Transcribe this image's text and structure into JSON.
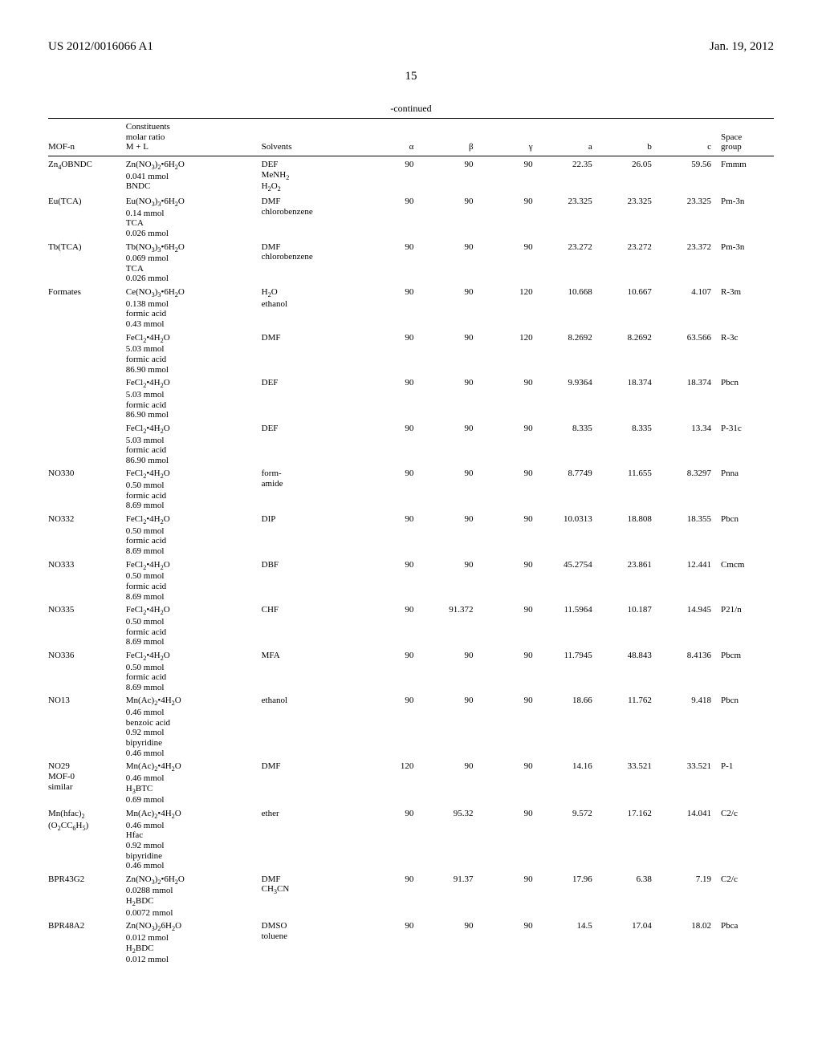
{
  "header": {
    "left": "US 2012/0016066 A1",
    "right": "Jan. 19, 2012",
    "page_num": "15",
    "continued": "-continued"
  },
  "table": {
    "columns": {
      "mof": "MOF-n",
      "const_line1": "Constituents",
      "const_line2": "molar ratio",
      "const_line3": "M + L",
      "solvents": "Solvents",
      "alpha": "α",
      "beta": "β",
      "gamma": "γ",
      "a": "a",
      "b": "b",
      "c": "c",
      "space_line1": "Space",
      "space_line2": "group"
    },
    "rows": [
      {
        "mof": "Zn<sub>4</sub>OBNDC",
        "const": "Zn(NO<sub>3</sub>)<sub>2</sub>•6H<sub>2</sub>O<br>0.041 mmol<br>BNDC",
        "solv": "DEF<br>MeNH<sub>2</sub><br>H<sub>2</sub>O<sub>2</sub>",
        "alpha": "90",
        "beta": "90",
        "gamma": "90",
        "a": "22.35",
        "b": "26.05",
        "c": "59.56",
        "sg": "Fmmm"
      },
      {
        "mof": "Eu(TCA)",
        "const": "Eu(NO<sub>3</sub>)<sub>3</sub>•6H<sub>2</sub>O<br>0.14 mmol<br>TCA<br>0.026 mmol",
        "solv": "DMF<br>chlorobenzene",
        "alpha": "90",
        "beta": "90",
        "gamma": "90",
        "a": "23.325",
        "b": "23.325",
        "c": "23.325",
        "sg": "Pm-3n"
      },
      {
        "mof": "Tb(TCA)",
        "const": "Tb(NO<sub>3</sub>)<sub>3</sub>•6H<sub>2</sub>O<br>0.069 mmol<br>TCA<br>0.026 mmol",
        "solv": "DMF<br>chlorobenzene",
        "alpha": "90",
        "beta": "90",
        "gamma": "90",
        "a": "23.272",
        "b": "23.272",
        "c": "23.372",
        "sg": "Pm-3n"
      },
      {
        "mof": "Formates",
        "const": "Ce(NO<sub>3</sub>)<sub>3</sub>•6H<sub>2</sub>O<br>0.138 mmol<br>formic acid<br>0.43 mmol",
        "solv": "H<sub>2</sub>O<br>ethanol",
        "alpha": "90",
        "beta": "90",
        "gamma": "120",
        "a": "10.668",
        "b": "10.667",
        "c": "4.107",
        "sg": "R-3m"
      },
      {
        "mof": "",
        "const": "FeCl<sub>2</sub>•4H<sub>2</sub>O<br>5.03 mmol<br>formic acid<br>86.90 mmol",
        "solv": "DMF",
        "alpha": "90",
        "beta": "90",
        "gamma": "120",
        "a": "8.2692",
        "b": "8.2692",
        "c": "63.566",
        "sg": "R-3c"
      },
      {
        "mof": "",
        "const": "FeCl<sub>2</sub>•4H<sub>2</sub>O<br>5.03 mmol<br>formic acid<br>86.90 mmol",
        "solv": "DEF",
        "alpha": "90",
        "beta": "90",
        "gamma": "90",
        "a": "9.9364",
        "b": "18.374",
        "c": "18.374",
        "sg": "Pbcn"
      },
      {
        "mof": "",
        "const": "FeCl<sub>2</sub>•4H<sub>2</sub>O<br>5.03 mmol<br>formic acid<br>86.90 mmol",
        "solv": "DEF",
        "alpha": "90",
        "beta": "90",
        "gamma": "90",
        "a": "8.335",
        "b": "8.335",
        "c": "13.34",
        "sg": "P-31c"
      },
      {
        "mof": "NO330",
        "const": "FeCl<sub>2</sub>•4H<sub>2</sub>O<br>0.50 mmol<br>formic acid<br>8.69 mmol",
        "solv": "form-<br>amide",
        "alpha": "90",
        "beta": "90",
        "gamma": "90",
        "a": "8.7749",
        "b": "11.655",
        "c": "8.3297",
        "sg": "Pnna"
      },
      {
        "mof": "NO332",
        "const": "FeCl<sub>2</sub>•4H<sub>2</sub>O<br>0.50 mmol<br>formic acid<br>8.69 mmol",
        "solv": "DIP",
        "alpha": "90",
        "beta": "90",
        "gamma": "90",
        "a": "10.0313",
        "b": "18.808",
        "c": "18.355",
        "sg": "Pbcn"
      },
      {
        "mof": "NO333",
        "const": "FeCl<sub>2</sub>•4H<sub>2</sub>O<br>0.50 mmol<br>formic acid<br>8.69 mmol",
        "solv": "DBF",
        "alpha": "90",
        "beta": "90",
        "gamma": "90",
        "a": "45.2754",
        "b": "23.861",
        "c": "12.441",
        "sg": "Cmcm"
      },
      {
        "mof": "NO335",
        "const": "FeCl<sub>2</sub>•4H<sub>2</sub>O<br>0.50 mmol<br>formic acid<br>8.69 mmol",
        "solv": "CHF",
        "alpha": "90",
        "beta": "91.372",
        "gamma": "90",
        "a": "11.5964",
        "b": "10.187",
        "c": "14.945",
        "sg": "P21/n"
      },
      {
        "mof": "NO336",
        "const": "FeCl<sub>2</sub>•4H<sub>2</sub>O<br>0.50 mmol<br>formic acid<br>8.69 mmol",
        "solv": "MFA",
        "alpha": "90",
        "beta": "90",
        "gamma": "90",
        "a": "11.7945",
        "b": "48.843",
        "c": "8.4136",
        "sg": "Pbcm"
      },
      {
        "mof": "NO13",
        "const": "Mn(Ac)<sub>2</sub>•4H<sub>2</sub>O<br>0.46 mmol<br>benzoic acid<br>0.92 mmol<br>bipyridine<br>0.46 mmol",
        "solv": "ethanol",
        "alpha": "90",
        "beta": "90",
        "gamma": "90",
        "a": "18.66",
        "b": "11.762",
        "c": "9.418",
        "sg": "Pbcn"
      },
      {
        "mof": "NO29<br>MOF-0<br>similar",
        "const": "Mn(Ac)<sub>2</sub>•4H<sub>2</sub>O<br>0.46 mmol<br>H<sub>3</sub>BTC<br>0.69 mmol",
        "solv": "DMF",
        "alpha": "120",
        "beta": "90",
        "gamma": "90",
        "a": "14.16",
        "b": "33.521",
        "c": "33.521",
        "sg": "P-1"
      },
      {
        "mof": "Mn(hfac)<sub>2</sub><br>(O<sub>2</sub>CC<sub>6</sub>H<sub>5</sub>)",
        "const": "Mn(Ac)<sub>2</sub>•4H<sub>2</sub>O<br>0.46 mmol<br>Hfac<br>0.92 mmol<br>bipyridine<br>0.46 mmol",
        "solv": "ether",
        "alpha": "90",
        "beta": "95.32",
        "gamma": "90",
        "a": "9.572",
        "b": "17.162",
        "c": "14.041",
        "sg": "C2/c"
      },
      {
        "mof": "BPR43G2",
        "const": "Zn(NO<sub>3</sub>)<sub>2</sub>•6H<sub>2</sub>O<br>0.0288 mmol<br>H<sub>2</sub>BDC<br>0.0072 mmol",
        "solv": "DMF<br>CH<sub>3</sub>CN",
        "alpha": "90",
        "beta": "91.37",
        "gamma": "90",
        "a": "17.96",
        "b": "6.38",
        "c": "7.19",
        "sg": "C2/c"
      },
      {
        "mof": "BPR48A2",
        "const": "Zn(NO<sub>3</sub>)<sub>2</sub>6H<sub>2</sub>O<br>0.012 mmol<br>H<sub>2</sub>BDC<br>0.012 mmol",
        "solv": "DMSO<br>toluene",
        "alpha": "90",
        "beta": "90",
        "gamma": "90",
        "a": "14.5",
        "b": "17.04",
        "c": "18.02",
        "sg": "Pbca"
      }
    ]
  }
}
